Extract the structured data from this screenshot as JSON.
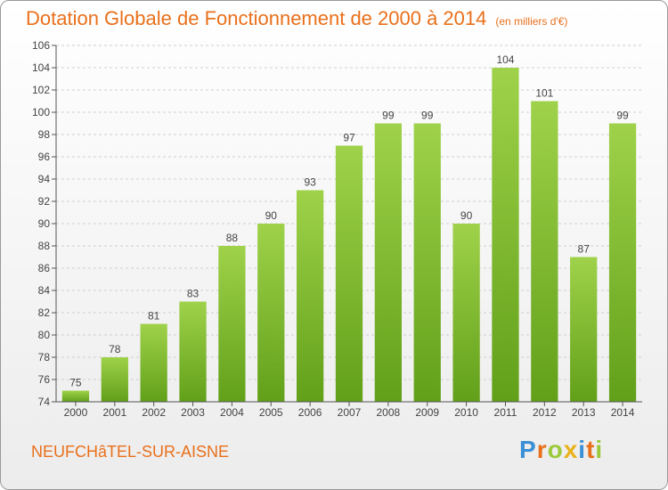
{
  "chart_data": {
    "type": "bar",
    "title": "Dotation Globale de Fonctionnement de 2000 à 2014",
    "subtitle": "(en milliers d'€)",
    "categories": [
      "2000",
      "2001",
      "2002",
      "2003",
      "2004",
      "2005",
      "2006",
      "2007",
      "2008",
      "2009",
      "2010",
      "2011",
      "2012",
      "2013",
      "2014"
    ],
    "values": [
      75,
      78,
      81,
      83,
      88,
      90,
      93,
      97,
      99,
      99,
      90,
      104,
      101,
      87,
      99
    ],
    "ylim": [
      74,
      106
    ],
    "yticks": [
      74,
      76,
      78,
      80,
      82,
      84,
      86,
      88,
      90,
      92,
      94,
      96,
      98,
      100,
      102,
      104,
      106
    ],
    "grid": true,
    "bar_color": "#7cb82c"
  },
  "commune": "NEUFCHâTEL-SUR-AISNE",
  "logo": {
    "letters": [
      "P",
      "r",
      "o",
      "x",
      "i",
      "t",
      "i"
    ],
    "colors": [
      "#3b8fd6",
      "#e9701b",
      "#9bc93b",
      "#e9b21b",
      "#3b8fd6",
      "#e9701b",
      "#9bc93b"
    ]
  }
}
